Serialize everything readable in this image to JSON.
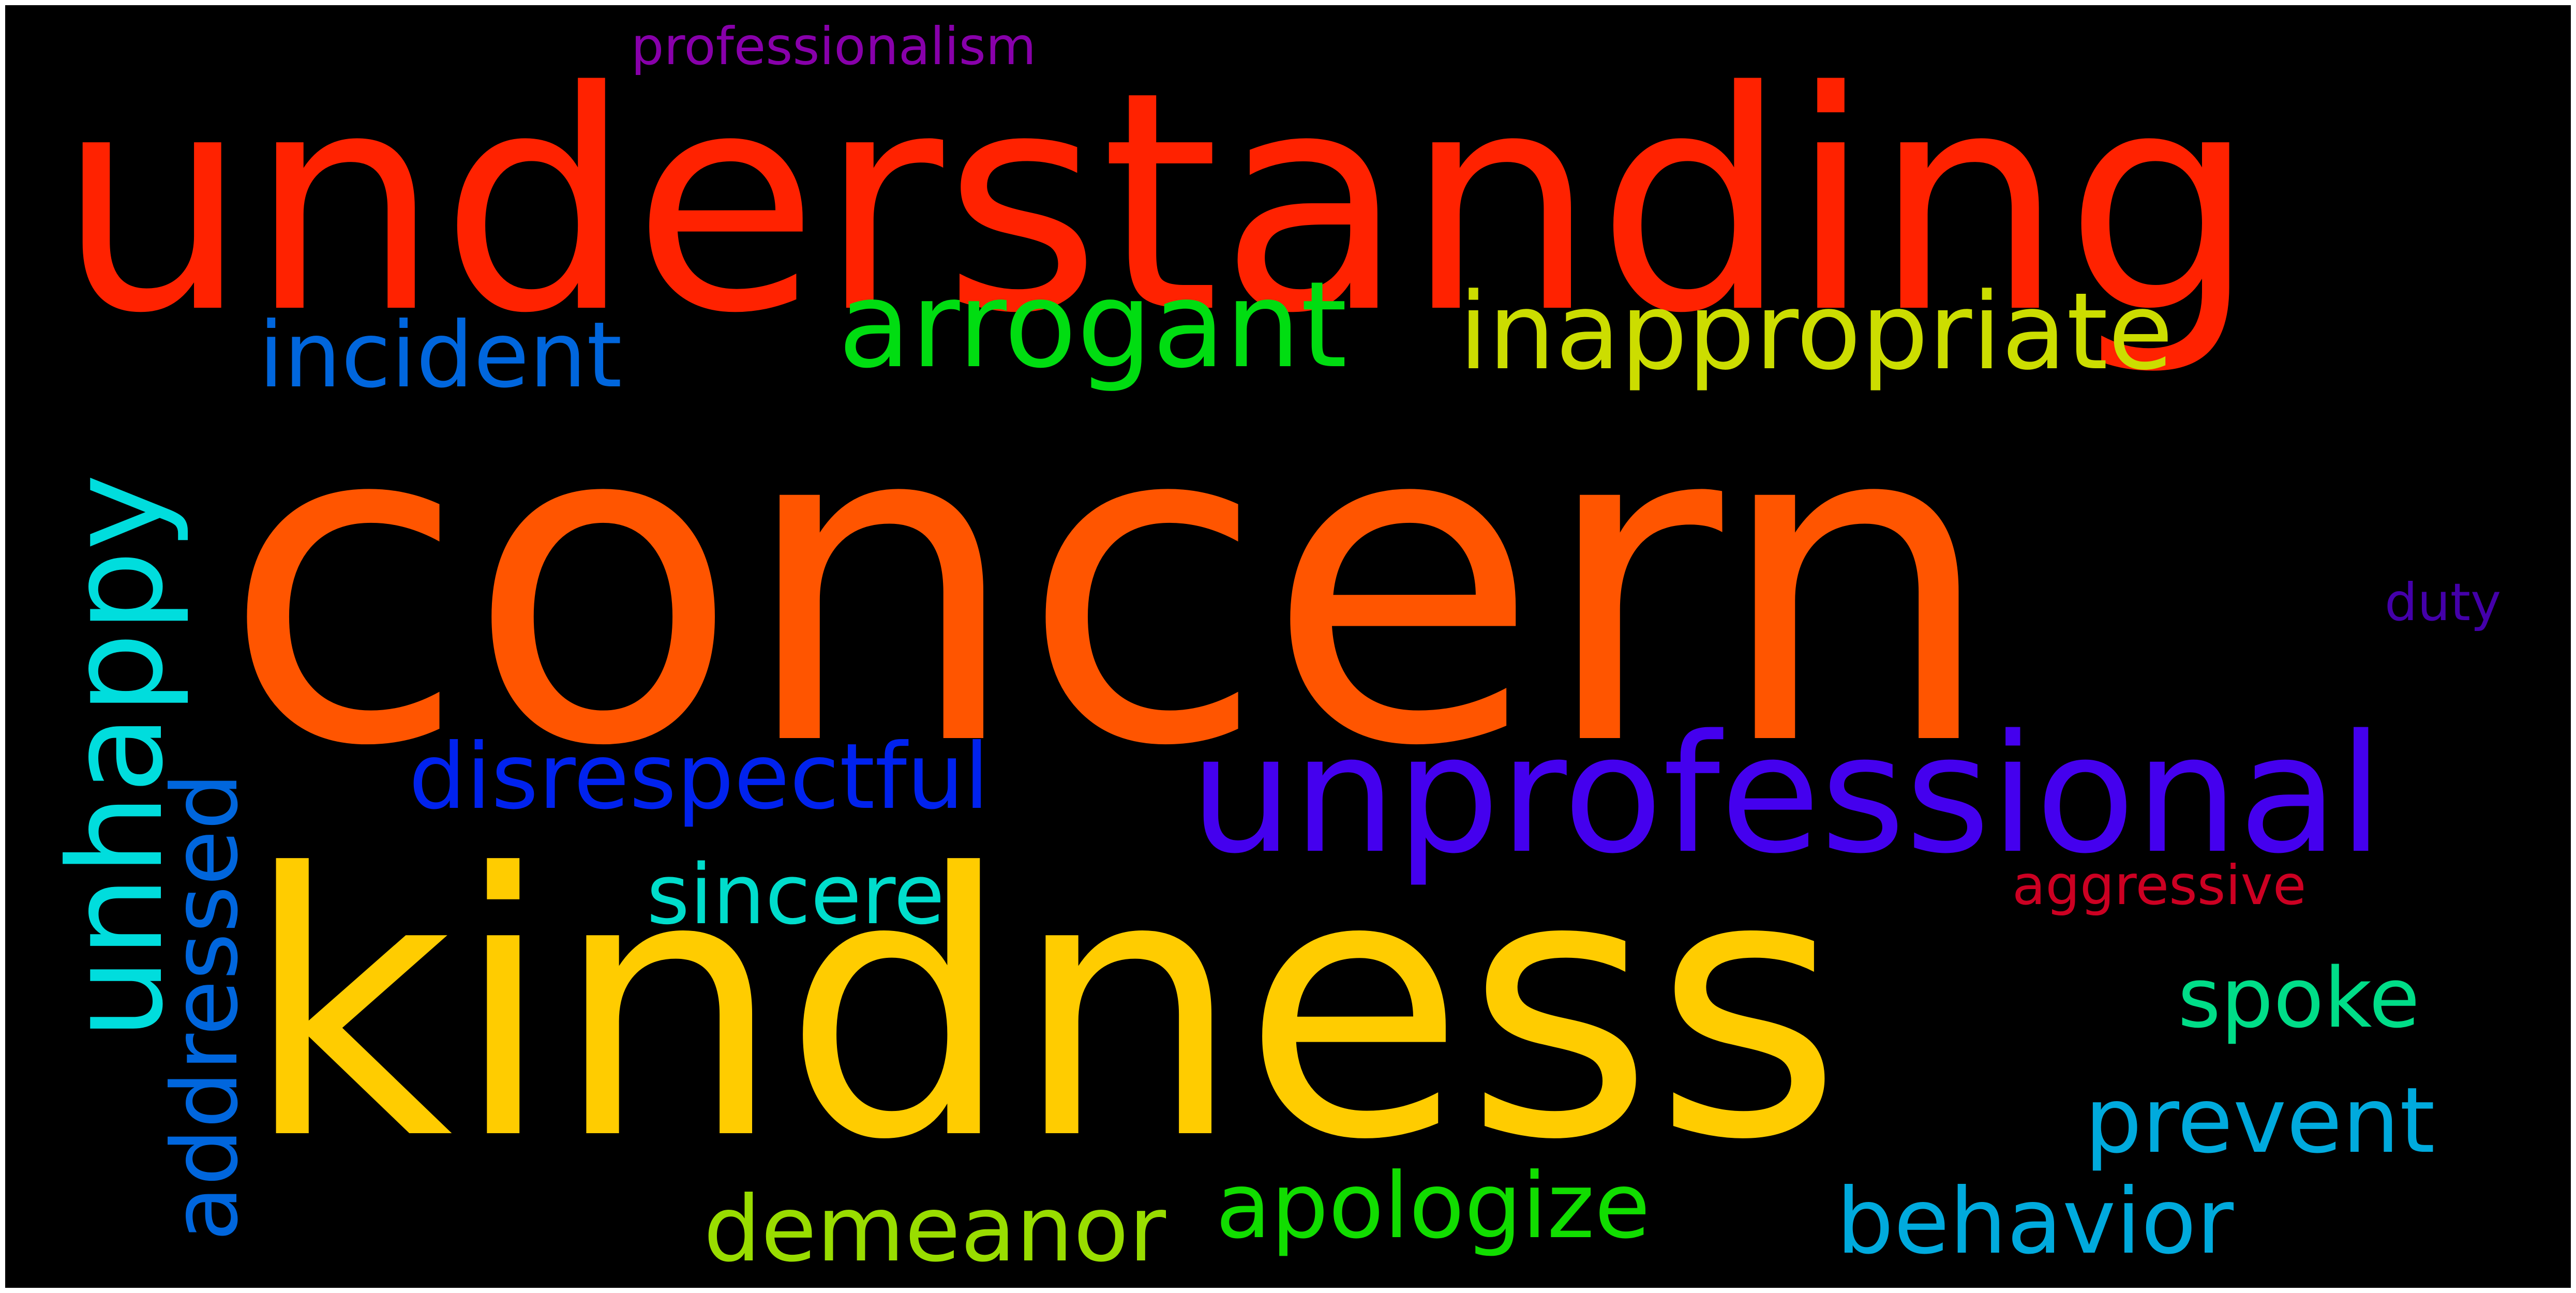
{
  "words": {
    "professionalism": {
      "text": "professionalism",
      "color": "#8800aa"
    },
    "understanding": {
      "text": "understanding",
      "color": "#ff2200"
    },
    "incident": {
      "text": "incident",
      "color": "#0066dd"
    },
    "arrogant": {
      "text": "arrogant",
      "color": "#00dd11"
    },
    "inappropriate": {
      "text": "inappropriate",
      "color": "#ccdd00"
    },
    "unhappy": {
      "text": "unhappy",
      "color": "#00dddd"
    },
    "concern": {
      "text": "concern",
      "color": "#ff5500"
    },
    "addressed": {
      "text": "addressed",
      "color": "#0066dd"
    },
    "disrespectful": {
      "text": "disrespectful",
      "color": "#0022ee"
    },
    "unprofessional": {
      "text": "unprofessional",
      "color": "#4400ee"
    },
    "duty": {
      "text": "duty",
      "color": "#4400aa"
    },
    "sincere": {
      "text": "sincere",
      "color": "#00ddcc"
    },
    "aggressive": {
      "text": "aggressive",
      "color": "#cc0022"
    },
    "kindness": {
      "text": "kindness",
      "color": "#ffcc00"
    },
    "spoke": {
      "text": "spoke",
      "color": "#00dd88"
    },
    "prevent": {
      "text": "prevent",
      "color": "#00aadd"
    },
    "behavior": {
      "text": "behavior",
      "color": "#00aadd"
    },
    "apologize": {
      "text": "apologize",
      "color": "#11dd00"
    },
    "demeanor": {
      "text": "demeanor",
      "color": "#99dd00"
    }
  }
}
